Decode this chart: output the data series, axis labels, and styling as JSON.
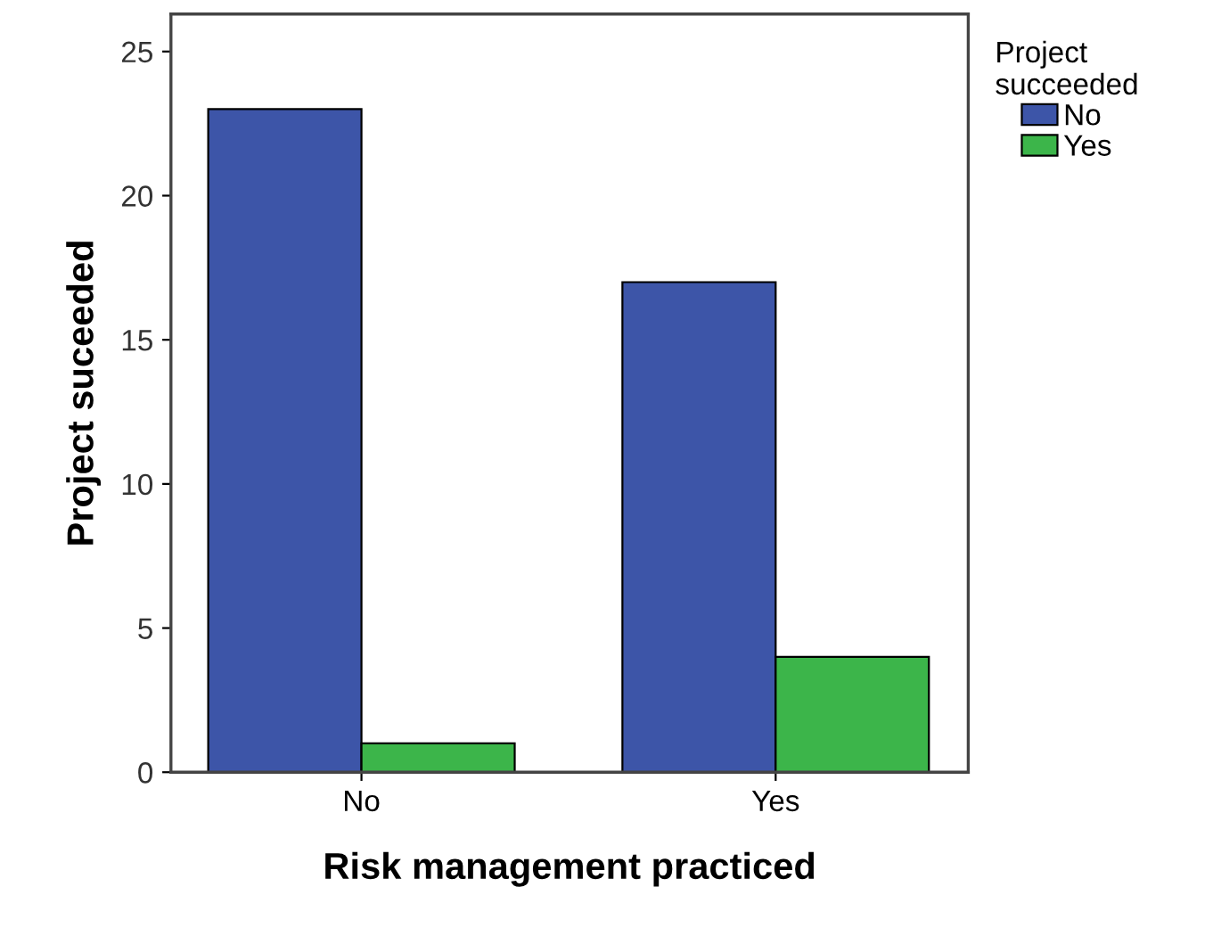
{
  "chart_data": {
    "type": "bar",
    "xlabel": "Risk management practiced",
    "ylabel": "Project suceeded",
    "legend_title": "Project\nsucceeded",
    "categories": [
      "No",
      "Yes"
    ],
    "series": [
      {
        "name": "No",
        "color": "#3d55a8",
        "values": [
          23,
          17
        ]
      },
      {
        "name": "Yes",
        "color": "#3cb54a",
        "values": [
          1,
          4
        ]
      }
    ],
    "ylim": [
      0,
      26.3
    ],
    "yticks": [
      0,
      5,
      10,
      15,
      20,
      25
    ],
    "grid": false,
    "legend": "right"
  }
}
